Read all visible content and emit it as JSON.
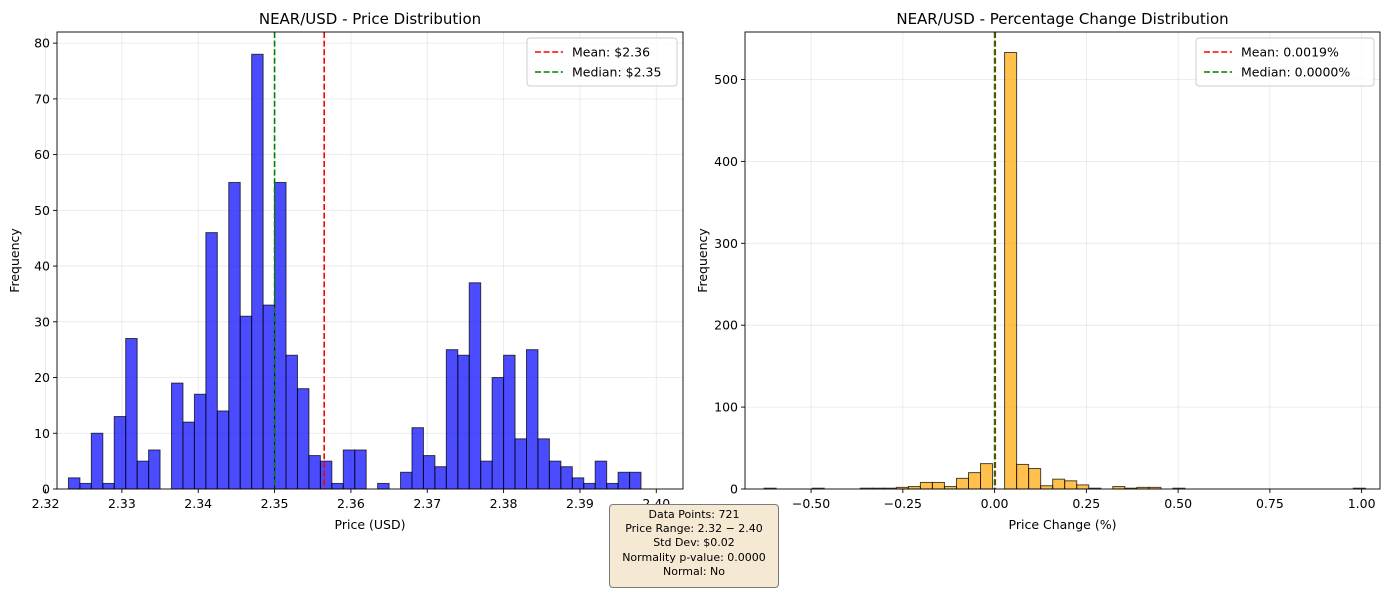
{
  "chart_data": [
    {
      "type": "bar",
      "title": "NEAR/USD - Price Distribution",
      "xlabel": "Price (USD)",
      "ylabel": "Frequency",
      "xlim": [
        2.3215,
        2.4035
      ],
      "ylim": [
        0,
        82
      ],
      "xticks": [
        2.32,
        2.33,
        2.34,
        2.35,
        2.36,
        2.37,
        2.38,
        2.39,
        2.4
      ],
      "xtick_labels": [
        "2.32",
        "2.33",
        "2.34",
        "2.35",
        "2.36",
        "2.37",
        "2.38",
        "2.39",
        "2.40"
      ],
      "yticks": [
        0,
        10,
        20,
        30,
        40,
        50,
        60,
        70,
        80
      ],
      "ytick_labels": [
        "0",
        "10",
        "20",
        "30",
        "40",
        "50",
        "60",
        "70",
        "80"
      ],
      "grid": true,
      "bar_color": "#0000ff",
      "bins": {
        "start": 2.323,
        "width": 0.0015,
        "counts": [
          2,
          1,
          10,
          1,
          13,
          27,
          5,
          7,
          0,
          19,
          12,
          17,
          46,
          14,
          55,
          31,
          78,
          33,
          55,
          24,
          18,
          6,
          5,
          1,
          7,
          7,
          0,
          1,
          0,
          3,
          11,
          6,
          4,
          25,
          24,
          37,
          5,
          20,
          24,
          9,
          25,
          9,
          5,
          4,
          2,
          1,
          5,
          1,
          3,
          3
        ]
      },
      "lines": [
        {
          "label": "Mean: $2.36",
          "x": 2.3565,
          "color": "#ff0000"
        },
        {
          "label": "Median: $2.35",
          "x": 2.35,
          "color": "#008000"
        }
      ],
      "legend": "top-right"
    },
    {
      "type": "bar",
      "title": "NEAR/USD - Percentage Change Distribution",
      "xlabel": "Price Change (%)",
      "ylabel": "Frequency",
      "xlim": [
        -0.68,
        1.05
      ],
      "ylim": [
        0,
        558
      ],
      "xticks": [
        -0.5,
        -0.25,
        0.0,
        0.25,
        0.5,
        0.75,
        1.0
      ],
      "xtick_labels": [
        "−0.50",
        "−0.25",
        "0.00",
        "0.25",
        "0.50",
        "0.75",
        "1.00"
      ],
      "yticks": [
        0,
        100,
        200,
        300,
        400,
        500
      ],
      "ytick_labels": [
        "0",
        "100",
        "200",
        "300",
        "400",
        "500"
      ],
      "grid": true,
      "bar_color": "#ffa500",
      "bins": {
        "start": -0.628,
        "width": 0.03276,
        "counts": [
          1,
          0,
          0,
          0,
          1,
          0,
          0,
          0,
          1,
          1,
          1,
          2,
          3,
          8,
          8,
          3,
          13,
          20,
          31,
          0,
          533,
          30,
          25,
          4,
          12,
          10,
          5,
          1,
          0,
          3,
          1,
          2,
          2,
          0,
          1,
          0,
          0,
          0,
          0,
          0,
          0,
          0,
          0,
          0,
          0,
          0,
          0,
          0,
          0,
          1
        ]
      },
      "lines": [
        {
          "label": "Mean: 0.0019%",
          "x": 0.0019,
          "color": "#ff0000"
        },
        {
          "label": "Median: 0.0000%",
          "x": 0.0,
          "color": "#008000"
        }
      ],
      "legend": "top-right"
    }
  ],
  "stats": {
    "data_points": "Data Points: 721",
    "price_range": "Price Range: 2.32 − 2.40",
    "std_dev": "Std Dev: $0.02",
    "normality": "Normality p-value: 0.0000",
    "normal": "Normal: No"
  }
}
